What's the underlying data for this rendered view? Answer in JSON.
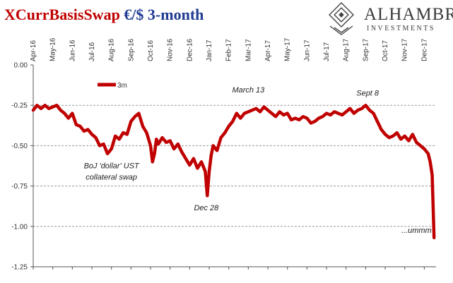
{
  "header": {
    "title_main": "XCurrBasisSwap",
    "title_sub": "€/$ 3-month"
  },
  "logo": {
    "name": "ALHAMBRA",
    "tagline": "INVESTMENTS"
  },
  "colors": {
    "series": "#c00000",
    "title_main": "#c00000",
    "title_sub": "#1f3a93",
    "grid": "#9a9a9a"
  },
  "chart_data": {
    "type": "line",
    "title": "XCurrBasisSwap €/$ 3-month",
    "xlabel": "",
    "ylabel": "",
    "ylim": [
      -1.25,
      0.0
    ],
    "yticks": [
      "0.00",
      "-0.25",
      "-0.50",
      "-0.75",
      "-1.00",
      "-1.25"
    ],
    "ytick_values": [
      0.0,
      -0.25,
      -0.5,
      -0.75,
      -1.0,
      -1.25
    ],
    "xticks": [
      "Apr-16",
      "May-16",
      "Jun-16",
      "Jul-16",
      "Aug-16",
      "Sep-16",
      "Oct-16",
      "Nov-16",
      "Dec-16",
      "Jan-17",
      "Feb-17",
      "Mar-17",
      "Apr-17",
      "May-17",
      "Jun-17",
      "Jul-17",
      "Aug-17",
      "Sep-17",
      "Oct-17",
      "Nov-17",
      "Dec-17"
    ],
    "xtick_index": [
      0,
      1,
      2,
      3,
      4,
      5,
      6,
      7,
      8,
      9,
      10,
      11,
      12,
      13,
      14,
      15,
      16,
      17,
      18,
      19,
      20
    ],
    "x_range": [
      0,
      20.6
    ],
    "grid": "horizontal dashed",
    "legend_position": "top-left",
    "series": [
      {
        "name": "3m",
        "x": [
          0,
          0.2,
          0.4,
          0.6,
          0.8,
          1.0,
          1.2,
          1.4,
          1.6,
          1.8,
          2.0,
          2.2,
          2.4,
          2.6,
          2.8,
          3.0,
          3.2,
          3.4,
          3.6,
          3.8,
          4.0,
          4.2,
          4.4,
          4.6,
          4.8,
          5.0,
          5.2,
          5.4,
          5.6,
          5.8,
          6.0,
          6.1,
          6.2,
          6.3,
          6.4,
          6.6,
          6.8,
          7.0,
          7.2,
          7.4,
          7.6,
          7.8,
          8.0,
          8.2,
          8.4,
          8.6,
          8.8,
          8.9,
          9.0,
          9.1,
          9.2,
          9.4,
          9.6,
          9.8,
          10.0,
          10.2,
          10.4,
          10.6,
          10.8,
          11.0,
          11.2,
          11.4,
          11.6,
          11.8,
          12.0,
          12.2,
          12.4,
          12.6,
          12.8,
          13.0,
          13.2,
          13.4,
          13.6,
          13.8,
          14.0,
          14.2,
          14.4,
          14.6,
          14.8,
          15.0,
          15.2,
          15.4,
          15.6,
          15.8,
          16.0,
          16.2,
          16.4,
          16.6,
          16.8,
          17.0,
          17.2,
          17.4,
          17.6,
          17.8,
          18.0,
          18.2,
          18.4,
          18.6,
          18.8,
          19.0,
          19.2,
          19.4,
          19.6,
          19.8,
          20.0,
          20.2,
          20.3,
          20.4,
          20.5
        ],
        "values": [
          -0.28,
          -0.25,
          -0.27,
          -0.25,
          -0.27,
          -0.26,
          -0.25,
          -0.28,
          -0.3,
          -0.33,
          -0.3,
          -0.37,
          -0.38,
          -0.41,
          -0.4,
          -0.43,
          -0.45,
          -0.5,
          -0.49,
          -0.55,
          -0.52,
          -0.44,
          -0.46,
          -0.42,
          -0.43,
          -0.35,
          -0.32,
          -0.3,
          -0.38,
          -0.42,
          -0.5,
          -0.6,
          -0.55,
          -0.46,
          -0.49,
          -0.45,
          -0.48,
          -0.47,
          -0.52,
          -0.49,
          -0.54,
          -0.58,
          -0.62,
          -0.58,
          -0.64,
          -0.6,
          -0.66,
          -0.81,
          -0.66,
          -0.56,
          -0.5,
          -0.53,
          -0.45,
          -0.42,
          -0.38,
          -0.35,
          -0.3,
          -0.33,
          -0.3,
          -0.29,
          -0.28,
          -0.27,
          -0.29,
          -0.26,
          -0.28,
          -0.3,
          -0.32,
          -0.29,
          -0.31,
          -0.3,
          -0.34,
          -0.33,
          -0.34,
          -0.32,
          -0.33,
          -0.36,
          -0.35,
          -0.33,
          -0.32,
          -0.3,
          -0.31,
          -0.29,
          -0.3,
          -0.31,
          -0.29,
          -0.27,
          -0.3,
          -0.28,
          -0.27,
          -0.25,
          -0.28,
          -0.3,
          -0.35,
          -0.4,
          -0.43,
          -0.45,
          -0.44,
          -0.42,
          -0.46,
          -0.44,
          -0.47,
          -0.43,
          -0.48,
          -0.5,
          -0.52,
          -0.55,
          -0.6,
          -0.68,
          -1.07
        ]
      }
    ],
    "annotations": [
      {
        "text": "BoJ 'dollar' UST",
        "x": 4.0,
        "y": -0.64
      },
      {
        "text": "collateral swap",
        "x": 4.0,
        "y": -0.71
      },
      {
        "text": "Dec 28",
        "x": 8.85,
        "y": -0.9
      },
      {
        "text": "March 13",
        "x": 11.0,
        "y": -0.17
      },
      {
        "text": "Sept 8",
        "x": 17.1,
        "y": -0.19
      },
      {
        "text": "...ummm",
        "x": 19.6,
        "y": -1.04
      }
    ]
  }
}
